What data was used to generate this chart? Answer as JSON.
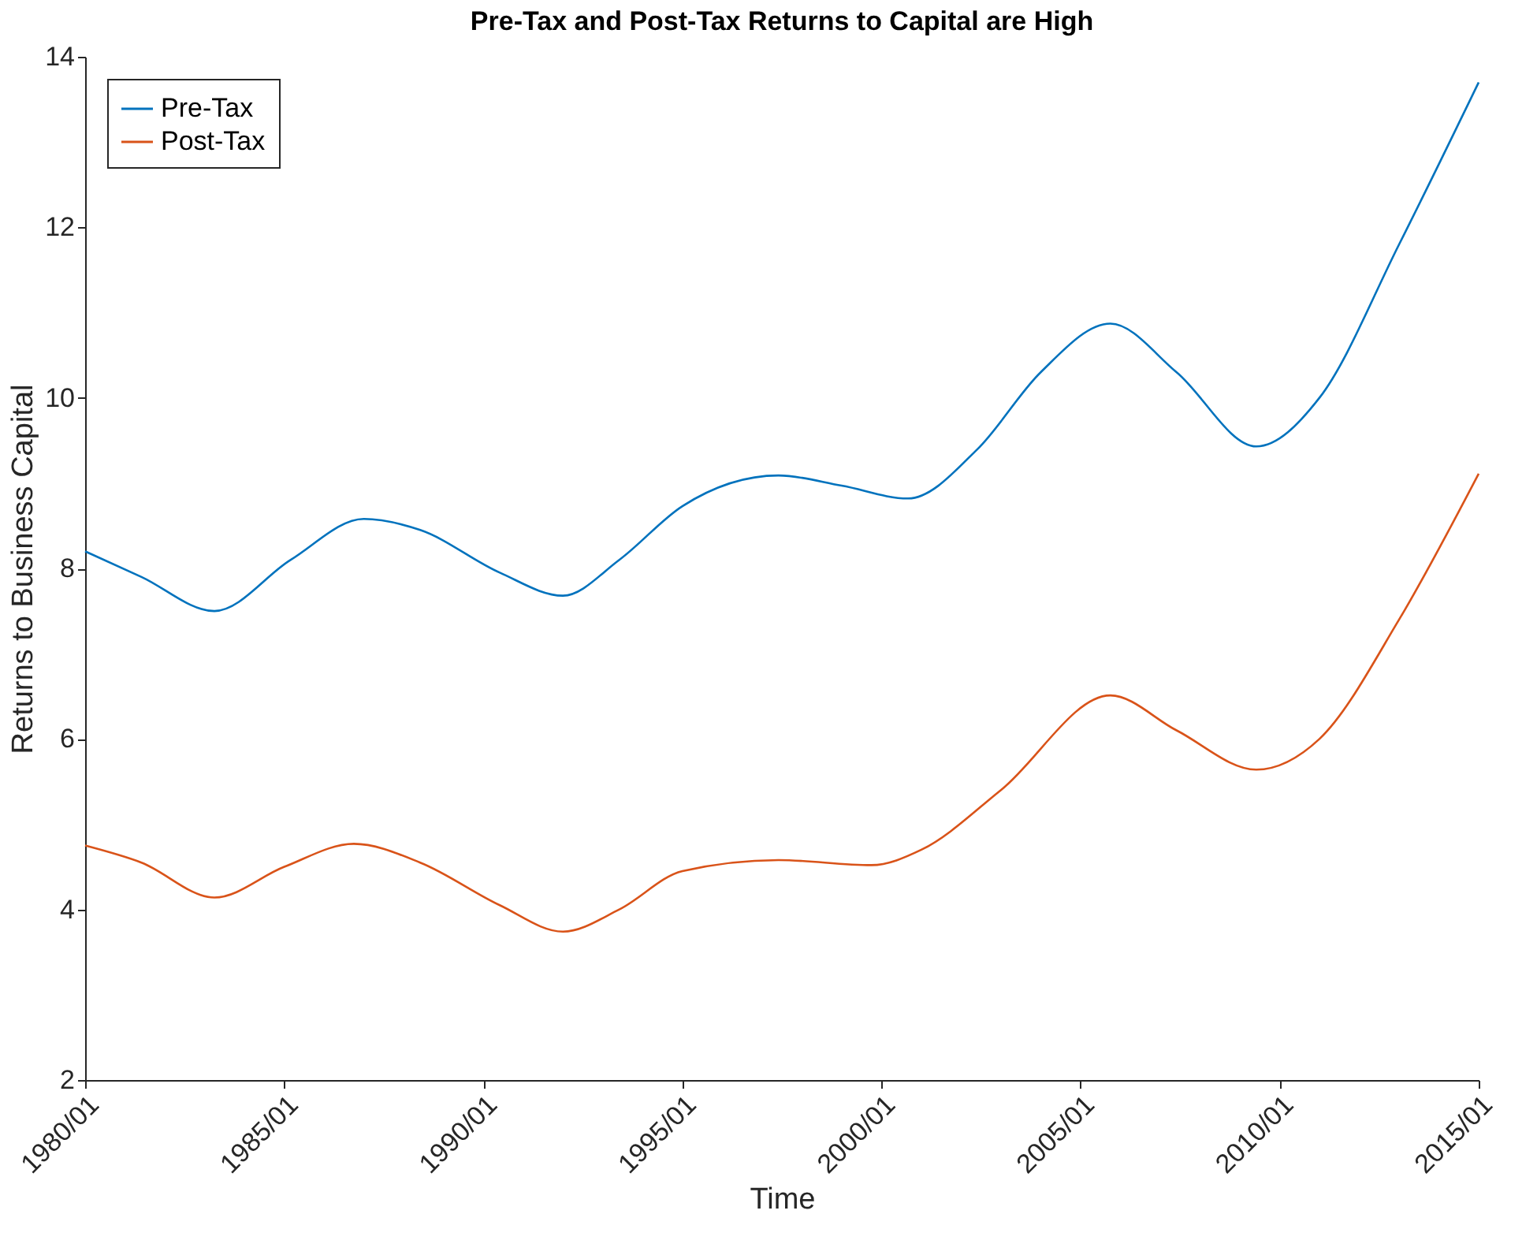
{
  "chart_data": {
    "type": "line",
    "title": "Pre-Tax and Post-Tax Returns to Capital are High",
    "xlabel": "Time",
    "ylabel": "Returns to Business Capital",
    "ylim": [
      2,
      14
    ],
    "yticks": [
      2,
      4,
      6,
      8,
      10,
      12,
      14
    ],
    "xlim": [
      "1980-01",
      "2015-01"
    ],
    "xticks": [
      {
        "value": "1980-01",
        "label": "1980/01"
      },
      {
        "value": "1985-01",
        "label": "1985/01"
      },
      {
        "value": "1990-01",
        "label": "1990/01"
      },
      {
        "value": "1995-01",
        "label": "1995/01"
      },
      {
        "value": "2000-01",
        "label": "2000/01"
      },
      {
        "value": "2005-01",
        "label": "2005/01"
      },
      {
        "value": "2010-01",
        "label": "2010/01"
      },
      {
        "value": "2015-01",
        "label": "2015/01"
      }
    ],
    "grid": false,
    "legend": "top left",
    "marker": "none",
    "line_style": "solid",
    "series": [
      {
        "name": "Pre-Tax",
        "color": "#0072bd",
        "x": [
          "1980-01",
          "1981-06",
          "1983-04",
          "1985-03",
          "1987-01",
          "1988-06",
          "1990-06",
          "1992-01",
          "1993-06",
          "1995-01",
          "1997-06",
          "1999-01",
          "2000-09",
          "2002-06",
          "2004-01",
          "2005-10",
          "2007-06",
          "2009-06",
          "2011-01",
          "2013-01",
          "2015-01"
        ],
        "values": [
          8.2,
          7.9,
          7.5,
          8.1,
          8.58,
          8.45,
          7.95,
          7.68,
          8.1,
          8.73,
          9.09,
          8.97,
          8.82,
          9.4,
          10.3,
          10.87,
          10.3,
          9.43,
          10.0,
          11.8,
          13.7
        ]
      },
      {
        "name": "Post-Tax",
        "color": "#d95319",
        "x": [
          "1980-01",
          "1981-06",
          "1983-04",
          "1985-01",
          "1986-10",
          "1988-06",
          "1990-06",
          "1992-01",
          "1993-06",
          "1995-01",
          "1997-06",
          "1999-10",
          "2001-01",
          "2003-01",
          "2005-10",
          "2007-06",
          "2009-06",
          "2011-01",
          "2013-01",
          "2015-01"
        ],
        "values": [
          4.75,
          4.55,
          4.14,
          4.5,
          4.77,
          4.55,
          4.05,
          3.74,
          4.0,
          4.45,
          4.58,
          4.52,
          4.7,
          5.4,
          6.51,
          6.1,
          5.64,
          6.0,
          7.4,
          9.11
        ]
      }
    ]
  }
}
